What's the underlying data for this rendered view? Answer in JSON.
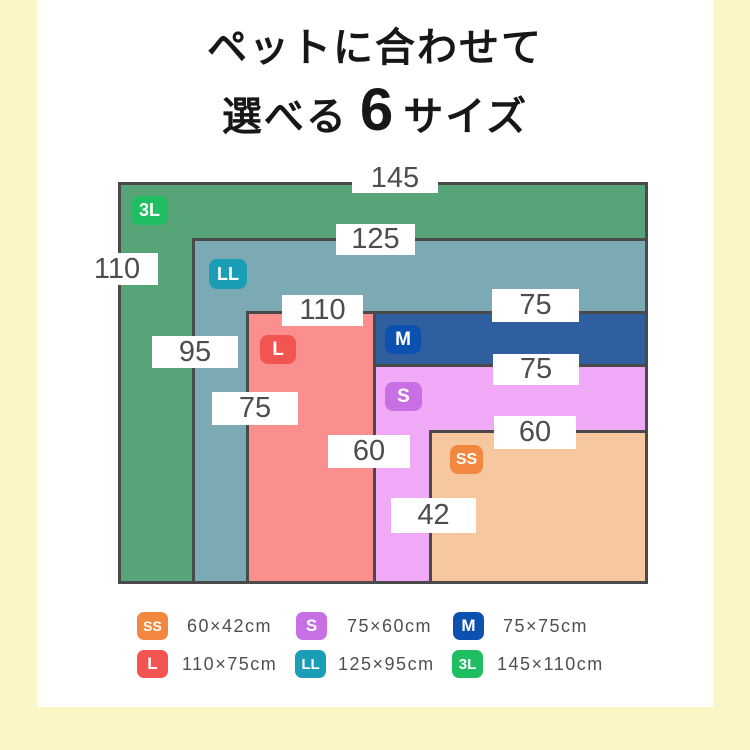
{
  "title": {
    "line1": "ペットに合わせて",
    "line2_before": "選べる",
    "line2_number": "6",
    "line2_after": "サイズ"
  },
  "chart_data": {
    "type": "nested-rectangles-size-comparison",
    "title": "ペットに合わせて選べる6サイズ",
    "unit": "cm",
    "sizes": [
      {
        "label": "SS",
        "width_cm": 60,
        "height_cm": 42,
        "dimensions": "60×42cm",
        "fill_color": "#f7c79f",
        "badge_color": "#f28840"
      },
      {
        "label": "S",
        "width_cm": 75,
        "height_cm": 60,
        "dimensions": "75×60cm",
        "fill_color": "#efa9f6",
        "badge_color": "#c76fe3"
      },
      {
        "label": "M",
        "width_cm": 75,
        "height_cm": 75,
        "dimensions": "75×75cm",
        "fill_color": "#2f5f9e",
        "badge_color": "#0d51b0"
      },
      {
        "label": "L",
        "width_cm": 110,
        "height_cm": 75,
        "dimensions": "110×75cm",
        "fill_color": "#fa8f8d",
        "badge_color": "#f25551"
      },
      {
        "label": "LL",
        "width_cm": 125,
        "height_cm": 95,
        "dimensions": "125×95cm",
        "fill_color": "#7baab5",
        "badge_color": "#199eb5"
      },
      {
        "label": "3L",
        "width_cm": 145,
        "height_cm": 110,
        "dimensions": "145×110cm",
        "fill_color": "#57a478",
        "badge_color": "#1fbe62"
      }
    ],
    "border_color": "#4a4a4a",
    "label_text_color": "#4d4d4d",
    "background_side_bands": "#faf6c6",
    "card_background": "#ffffff"
  },
  "diagram": {
    "badges": {
      "ss": "SS",
      "s": "S",
      "m": "M",
      "l": "L",
      "ll": "LL",
      "xxxl": "3L"
    },
    "labels": {
      "w145": "145",
      "h110": "110",
      "w125": "125",
      "h95": "95",
      "w110": "110",
      "h75l": "75",
      "w75m": "75",
      "w75s": "75",
      "h60s": "60",
      "w60ss": "60",
      "h42": "42"
    }
  },
  "legend": {
    "items": [
      {
        "badge": "SS",
        "text": "60×42cm"
      },
      {
        "badge": "S",
        "text": "75×60cm"
      },
      {
        "badge": "M",
        "text": "75×75cm"
      },
      {
        "badge": "L",
        "text": "110×75cm"
      },
      {
        "badge": "LL",
        "text": "125×95cm"
      },
      {
        "badge": "3L",
        "text": "145×110cm"
      }
    ]
  }
}
